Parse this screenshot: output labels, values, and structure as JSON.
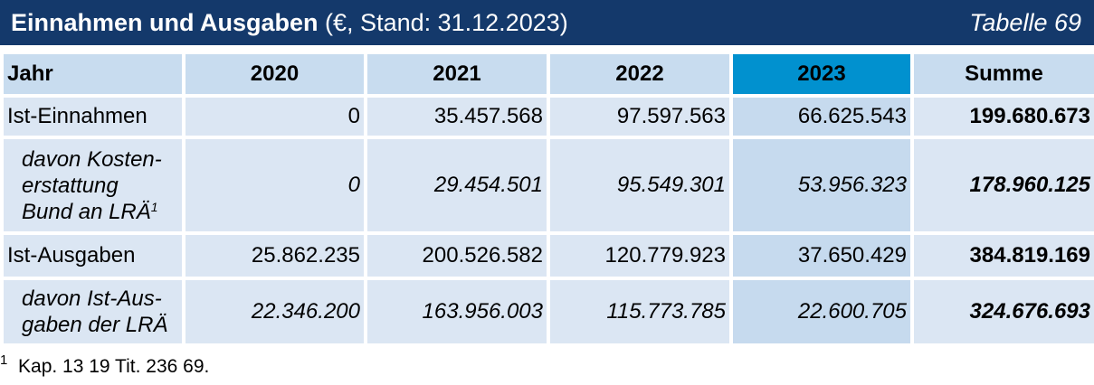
{
  "title": {
    "main": "Einnahmen und Ausgaben",
    "sub": "(€, Stand: 31.12.2023)",
    "table_number": "Tabelle 69"
  },
  "table": {
    "headers": [
      "Jahr",
      "2020",
      "2021",
      "2022",
      "2023",
      "Summe"
    ],
    "highlight_color": "#0191cf",
    "rows": [
      {
        "label_lines": [
          "Ist-Einnahmen"
        ],
        "values": [
          "0",
          "35.457.568",
          "97.597.563",
          "66.625.543",
          "199.680.673"
        ]
      },
      {
        "label_lines": [
          "davon Kosten-",
          "erstattung",
          "Bund an LRÄ"
        ],
        "label_sup": "1",
        "values": [
          "0",
          "29.454.501",
          "95.549.301",
          "53.956.323",
          "178.960.125"
        ]
      },
      {
        "label_lines": [
          "Ist-Ausgaben"
        ],
        "values": [
          "25.862.235",
          "200.526.582",
          "120.779.923",
          "37.650.429",
          "384.819.169"
        ]
      },
      {
        "label_lines": [
          "davon Ist-Aus-",
          "gaben der LRÄ"
        ],
        "values": [
          "22.346.200",
          "163.956.003",
          "115.773.785",
          "22.600.705",
          "324.676.693"
        ]
      }
    ]
  },
  "footnote": {
    "mark": "1",
    "text": "Kap. 13 19 Tit. 236 69."
  }
}
